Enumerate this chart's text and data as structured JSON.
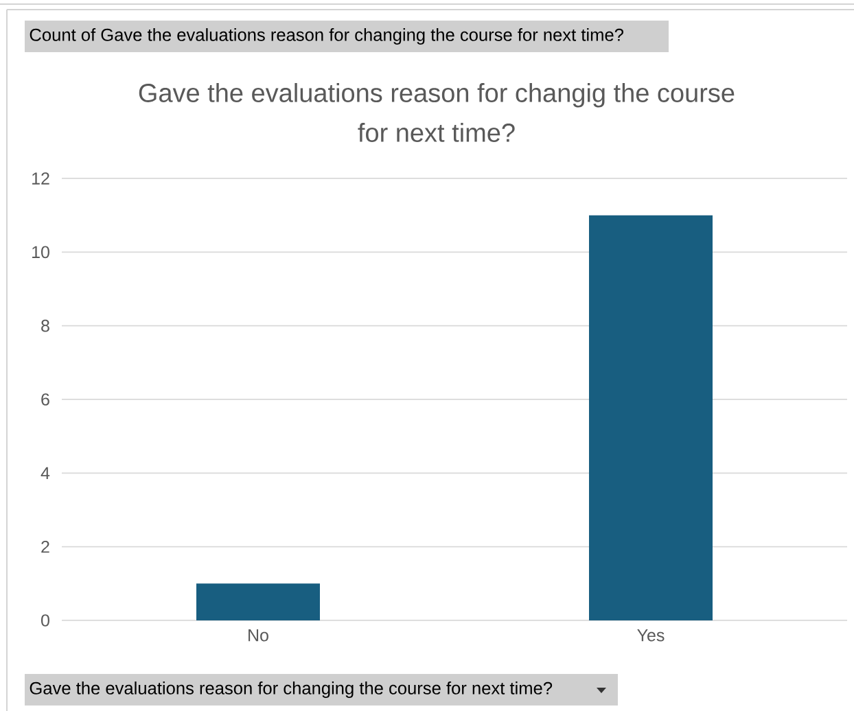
{
  "chart_data": {
    "type": "bar",
    "title": "Gave the evaluations reason for changig the course for next time?",
    "categories": [
      "No",
      "Yes"
    ],
    "values": [
      1,
      11
    ],
    "color": "#185e80",
    "ylim": [
      0,
      12
    ],
    "yticks": [
      0,
      2,
      4,
      6,
      8,
      10,
      12
    ],
    "grid": "y",
    "annotations": [
      "Count of Gave the evaluations reason for changing the course for next time?",
      "Gave the evaluations reason for changing the course for next time?"
    ]
  }
}
